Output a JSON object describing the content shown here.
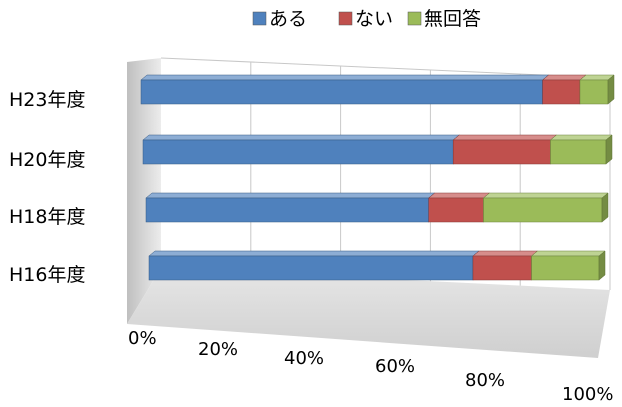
{
  "chart_data": {
    "type": "bar",
    "orientation": "horizontal",
    "stacking": "percent",
    "style": "3d",
    "categories": [
      "H23年度",
      "H20年度",
      "H18年度",
      "H16年度"
    ],
    "series": [
      {
        "name": "ある",
        "color": "#4f81bd",
        "values": [
          86,
          67,
          62,
          72
        ]
      },
      {
        "name": "ない",
        "color": "#c0504d",
        "values": [
          8,
          21,
          12,
          13
        ]
      },
      {
        "name": "無回答",
        "color": "#9bbb59",
        "values": [
          6,
          12,
          26,
          15
        ]
      }
    ],
    "x_ticks": [
      "0%",
      "20%",
      "40%",
      "60%",
      "80%",
      "100%"
    ],
    "xlim": [
      0,
      100
    ],
    "grid": true,
    "legend": "top"
  }
}
